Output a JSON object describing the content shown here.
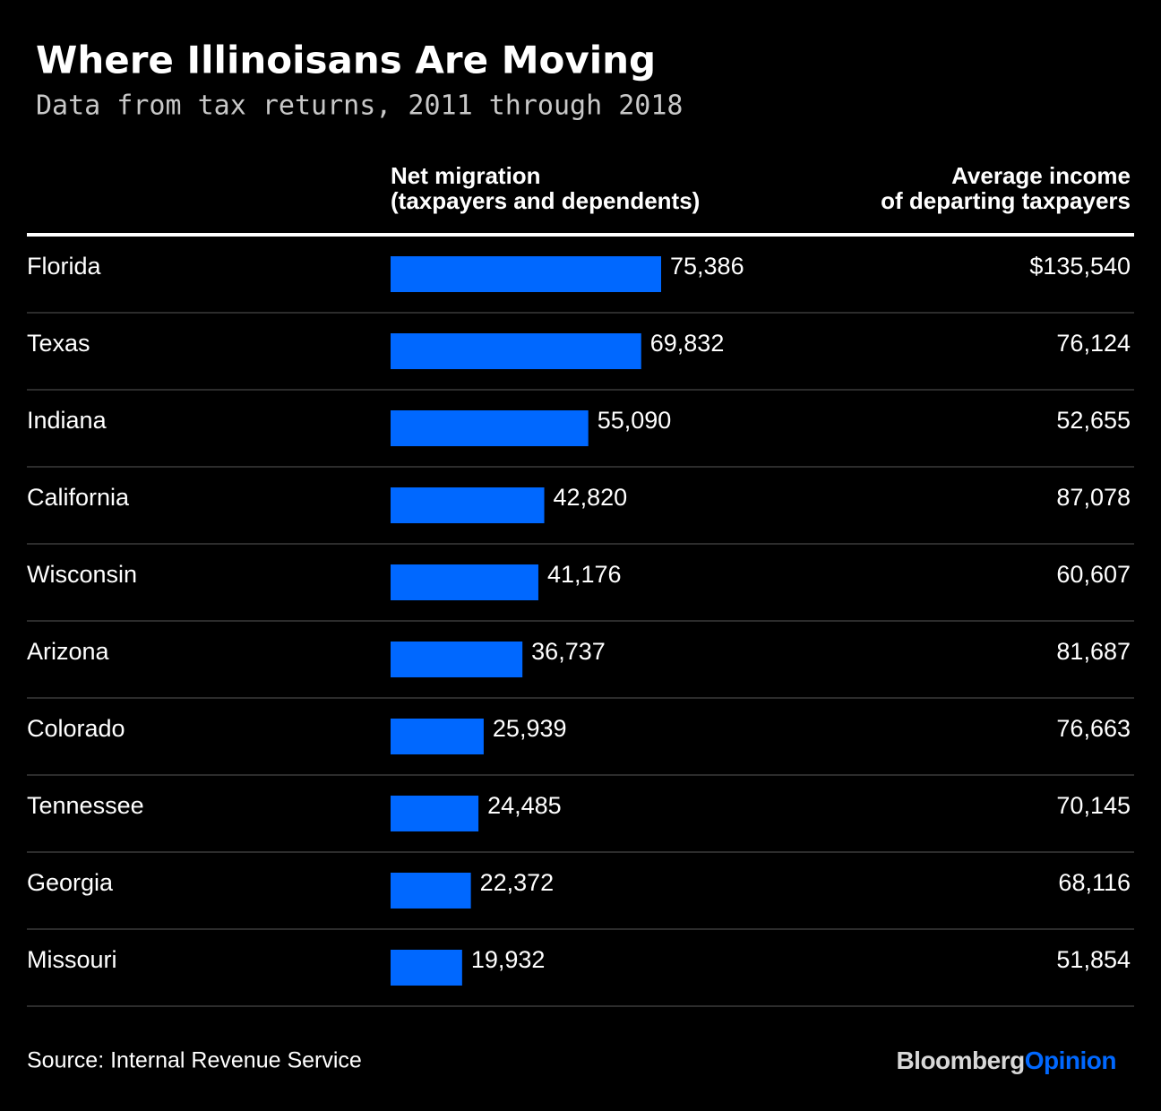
{
  "chart_data": {
    "type": "bar",
    "title": "Where Illinoisans Are Moving",
    "subtitle": "Data from tax returns, 2011 through 2018",
    "bar_header": [
      "Net migration",
      "(taxpayers and dependents)"
    ],
    "income_header": [
      "Average income",
      "of departing taxpayers"
    ],
    "categories": [
      "Florida",
      "Texas",
      "Indiana",
      "California",
      "Wisconsin",
      "Arizona",
      "Colorado",
      "Tennessee",
      "Georgia",
      "Missouri"
    ],
    "values": [
      75386,
      69832,
      55090,
      42820,
      41176,
      36737,
      25939,
      24485,
      22372,
      19932
    ],
    "value_labels": [
      "75,386",
      "69,832",
      "55,090",
      "42,820",
      "41,176",
      "36,737",
      "25,939",
      "24,485",
      "22,372",
      "19,932"
    ],
    "incomes": [
      "$135,540",
      "76,124",
      "52,655",
      "87,078",
      "60,607",
      "81,687",
      "76,663",
      "70,145",
      "68,116",
      "51,854"
    ],
    "color": "#0068ff",
    "source": "Source: Internal Revenue Service",
    "brand": [
      "Bloomberg",
      "Opinion"
    ]
  }
}
